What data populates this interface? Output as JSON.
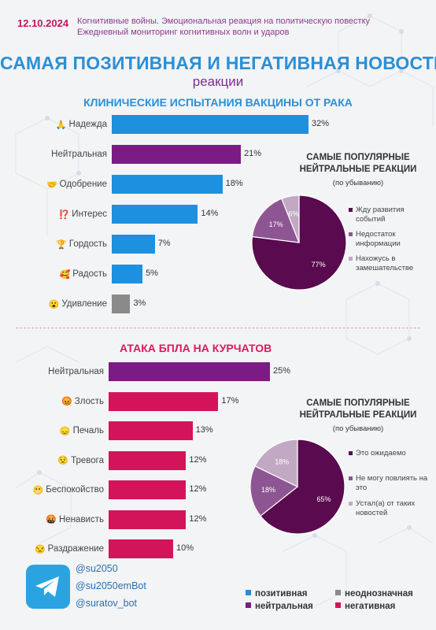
{
  "header": {
    "date": "12.10.2024",
    "subtitle_line1": "Когнитивные войны. Эмоциональная реакция на политическую повестку",
    "subtitle_line2": "Ежедневный мониторинг когнитивных волн и ударов"
  },
  "title": "САМАЯ ПОЗИТИВНАЯ И НЕГАТИВНАЯ НОВОСТИ",
  "subtitle": "реакции",
  "colors": {
    "positive": "#1e90e0",
    "neutral": "#7b1c84",
    "ambiguous": "#8a8a8a",
    "negative": "#d4145a"
  },
  "chart_data": [
    {
      "type": "bar",
      "title": "КЛИНИЧЕСКИЕ ИСПЫТАНИЯ ВАКЦИНЫ ОТ РАКА",
      "orientation": "horizontal",
      "unit": "%",
      "categories": [
        "Надежда",
        "Нейтральная",
        "Одобрение",
        "Интерес",
        "Гордость",
        "Радость",
        "Удивление"
      ],
      "values": [
        32,
        21,
        18,
        14,
        7,
        5,
        3
      ],
      "value_labels": [
        "32%",
        "21%",
        "18%",
        "14%",
        "7%",
        "5%",
        "3%"
      ],
      "kinds": [
        "positive",
        "neutral",
        "positive",
        "positive",
        "positive",
        "positive",
        "ambiguous"
      ],
      "icons": [
        "🙏",
        "",
        "🤝",
        "⁉️",
        "🏆",
        "🥰",
        "😮"
      ],
      "xlim": [
        0,
        32
      ]
    },
    {
      "type": "pie",
      "title": "САМЫЕ ПОПУЛЯРНЫЕ НЕЙТРАЛЬНЫЕ РЕАКЦИИ",
      "note": "(по убыванию)",
      "labels": [
        "Жду развития событий",
        "Недостаток информации",
        "Нахожусь в замешательстве"
      ],
      "values": [
        77,
        17,
        6
      ],
      "value_labels": [
        "77%",
        "17%",
        "6%"
      ],
      "colors": [
        "#5a0a4e",
        "#8e5593",
        "#c2a9c3"
      ]
    },
    {
      "type": "bar",
      "title": "АТАКА БПЛА НА КУРЧАТОВ",
      "orientation": "horizontal",
      "unit": "%",
      "categories": [
        "Нейтральная",
        "Злость",
        "Печаль",
        "Тревога",
        "Беспокойство",
        "Ненависть",
        "Раздражение"
      ],
      "values": [
        25,
        17,
        13,
        12,
        12,
        12,
        10
      ],
      "value_labels": [
        "25%",
        "17%",
        "13%",
        "12%",
        "12%",
        "12%",
        "10%"
      ],
      "kinds": [
        "neutral",
        "negative",
        "negative",
        "negative",
        "negative",
        "negative",
        "negative"
      ],
      "icons": [
        "",
        "😡",
        "😞",
        "😟",
        "😬",
        "🤬",
        "😒"
      ],
      "xlim": [
        0,
        25
      ]
    },
    {
      "type": "pie",
      "title": "САМЫЕ ПОПУЛЯРНЫЕ НЕЙТРАЛЬНЫЕ РЕАКЦИИ",
      "note": "(по убыванию)",
      "labels": [
        "Это ожидаемо",
        "Не могу повлиять на это",
        "Устал(а) от таких новостей"
      ],
      "values": [
        65,
        18,
        18
      ],
      "value_labels": [
        "65%",
        "18%",
        "18%"
      ],
      "colors": [
        "#5a0a4e",
        "#8e5593",
        "#c2a9c3"
      ]
    }
  ],
  "contacts": [
    "@su2050",
    "@su2050emBot",
    "@suratov_bot"
  ],
  "legend": [
    {
      "label": "позитивная",
      "color": "#1e90e0"
    },
    {
      "label": "неоднозначная",
      "color": "#8a8a8a"
    },
    {
      "label": "нейтральная",
      "color": "#7b1c84"
    },
    {
      "label": "негативная",
      "color": "#d4145a"
    }
  ],
  "icons": {
    "messenger": "telegram-icon"
  }
}
